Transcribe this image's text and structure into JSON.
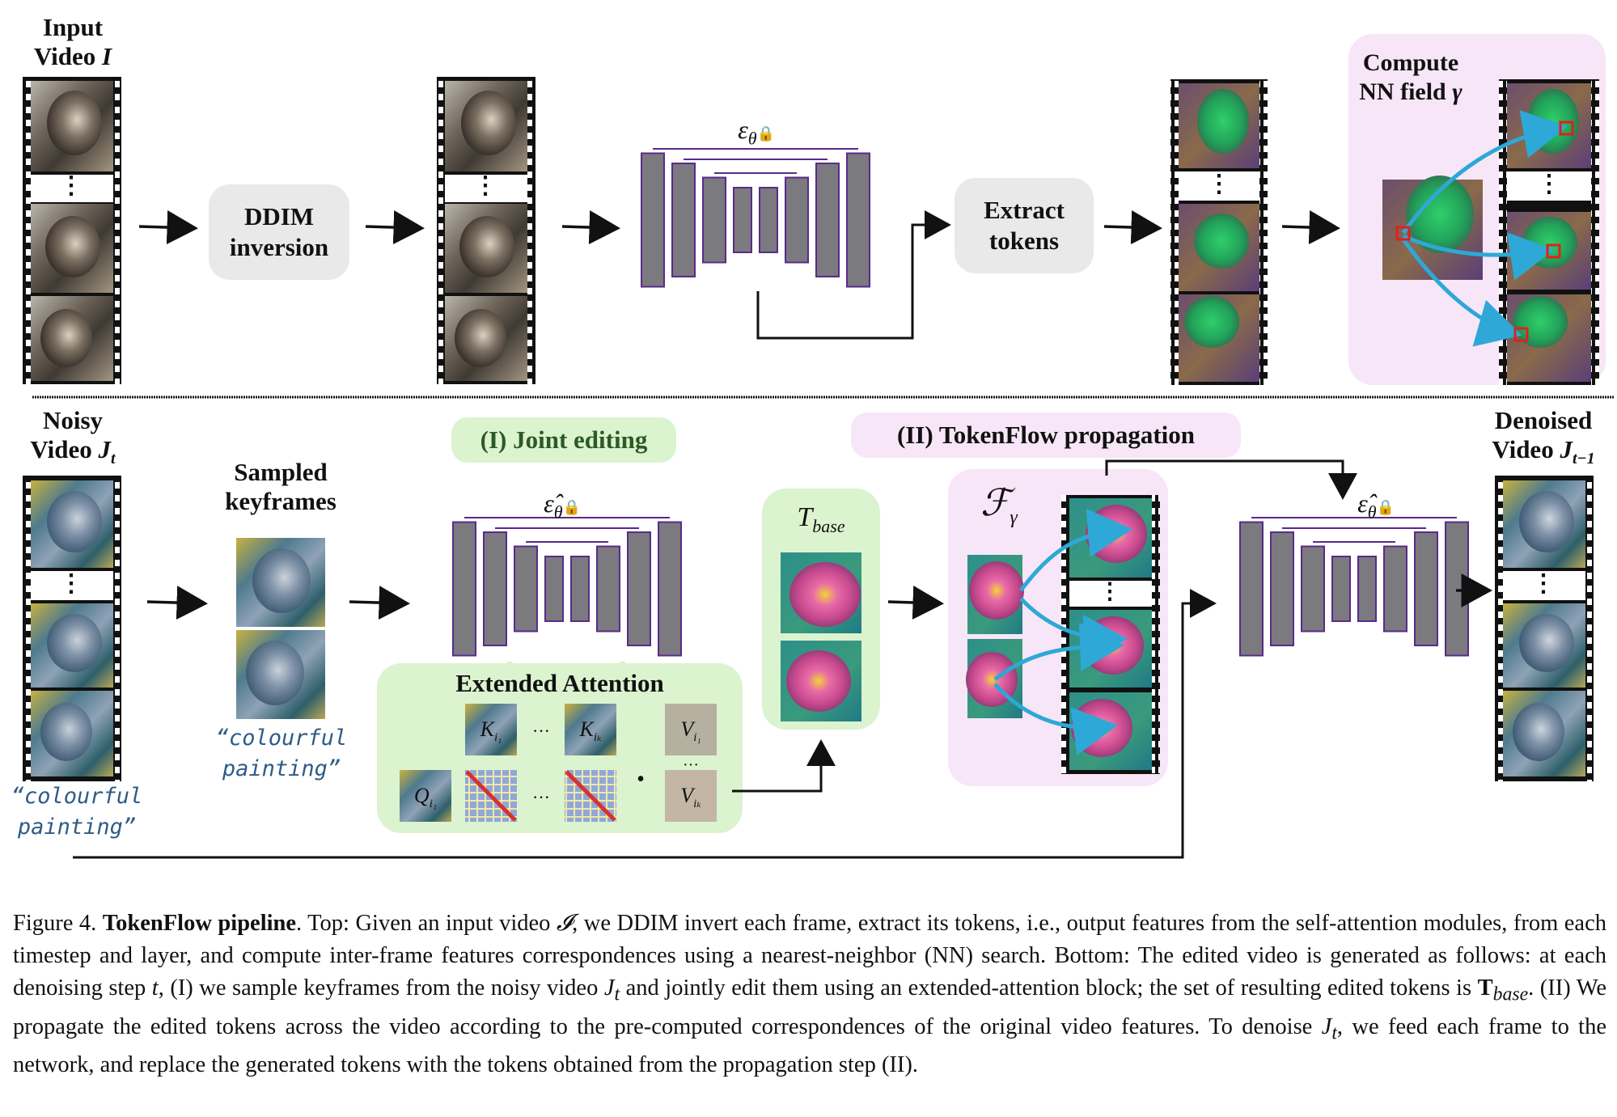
{
  "figure": {
    "top": {
      "input_video_title": "Input",
      "input_video_subtitle": "Video",
      "input_video_symbol": "I",
      "ddim_label_line1": "DDIM",
      "ddim_label_line2": "inversion",
      "unet_symbol": "ε",
      "unet_subscript": "θ",
      "extract_label_line1": "Extract",
      "extract_label_line2": "tokens",
      "nn_field_line1": "Compute",
      "nn_field_line2": "NN field",
      "nn_field_symbol": "γ",
      "ellipsis": "⋮"
    },
    "bottom": {
      "noisy_video_title": "Noisy",
      "noisy_video_subtitle": "Video",
      "noisy_video_symbol": "J",
      "noisy_video_sub": "t",
      "sampled_keyframes_line1": "Sampled",
      "sampled_keyframes_line2": "keyframes",
      "prompt_keyframes_line1": "“colourful",
      "prompt_keyframes_line2": "painting”",
      "prompt_noisy_line1": "“colourful",
      "prompt_noisy_line2": "painting”",
      "joint_editing_label": "(I) Joint editing",
      "extended_attention_label": "Extended Attention",
      "tbase_symbol": "T",
      "tbase_sub": "base",
      "propagation_label": "(II) TokenFlow propagation",
      "flow_symbol": "ℱ",
      "flow_sub": "γ",
      "denoised_video_title": "Denoised",
      "denoised_video_subtitle": "Video",
      "denoised_video_symbol": "J",
      "denoised_video_sub": "t−1",
      "unet_symbol": "ε̂",
      "unet_subscript": "θ",
      "attn_q": "Q",
      "attn_q_sub": "i₁",
      "attn_k1": "K",
      "attn_k1_sub": "i₁",
      "attn_kk": "K",
      "attn_kk_sub": "iₖ",
      "attn_v1": "V",
      "attn_v1_sub": "i₁",
      "attn_vk": "V",
      "attn_vk_sub": "iₖ",
      "dots": "···",
      "dot": "•"
    }
  },
  "caption": {
    "prefix": "Figure 4.",
    "title": "TokenFlow pipeline",
    "body_1": ". Top: Given an input video ",
    "sym_I": "𝓘",
    "body_2": ", we DDIM invert each frame, extract its tokens, i.e., output features from the self-attention modules, from each timestep and layer, and compute inter-frame features correspondences using a nearest-neighbor (NN) search. Bottom: The edited video is generated as follows: at each denoising step ",
    "sym_t": "t",
    "body_3": ", (I) we sample keyframes from the noisy video ",
    "sym_Jt": "J",
    "sym_Jt_sub": "t",
    "body_4": " and jointly edit them using an extended-attention block; the set of resulting edited tokens is ",
    "sym_T": "T",
    "sym_T_sub": "base",
    "body_5": ". (II) We propagate the edited tokens across the video according to the pre-computed correspondences of the original video features. To denoise ",
    "sym_Jt2": "J",
    "sym_Jt2_sub": "t",
    "body_6": ", we feed each frame to the network, and replace the generated tokens with the tokens obtained from the propagation step (II)."
  },
  "colors": {
    "unet_block": "#7a7a7f",
    "unet_outline": "#5a2a8a",
    "pill_gray": "#e9e9e9",
    "pill_green": "#dbf3cf",
    "pill_pink": "#f7e6f8",
    "prompt_text": "#2e5b86",
    "nn_arrow": "#2ea8d6",
    "nn_marker": "#e0201a"
  }
}
